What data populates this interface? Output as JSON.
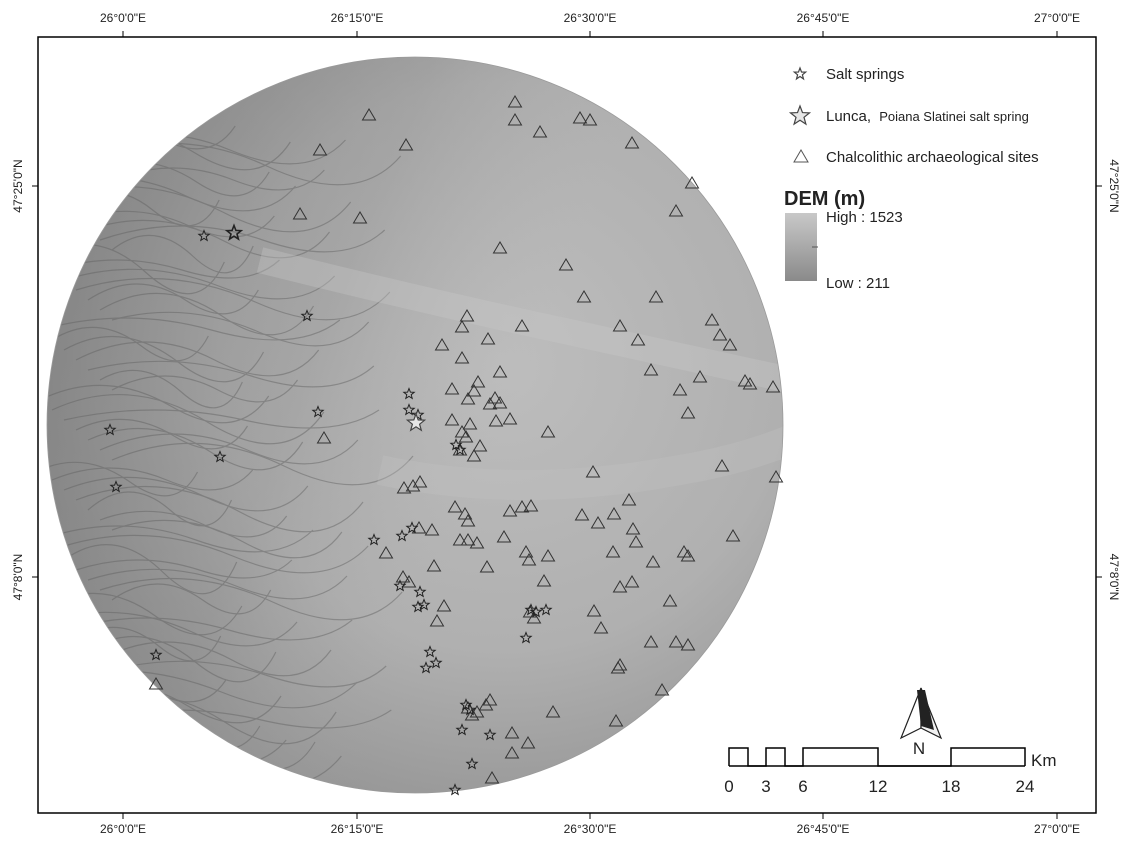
{
  "map": {
    "graticule": {
      "top_labels": [
        "26°0'0\"E",
        "26°15'0\"E",
        "26°30'0\"E",
        "26°45'0\"E",
        "27°0'0\"E"
      ],
      "bottom_labels": [
        "26°0'0\"E",
        "26°15'0\"E",
        "26°30'0\"E",
        "26°45'0\"E",
        "27°0'0\"E"
      ],
      "left_labels": [
        "47°25'0\"N",
        "47°8'0\"N"
      ],
      "right_labels": [
        "47°25'0\"N",
        "47°8'0\"N"
      ]
    },
    "legend": {
      "salt_springs": "Salt springs",
      "lunca_prefix": "Lunca,",
      "lunca_suffix": "Poiana Slatinei salt spring",
      "sites": "Chalcolithic archaeological sites",
      "dem_title": "DEM (m)",
      "dem_high": "High : 1523",
      "dem_low": "Low : 211"
    },
    "north_arrow_label": "N",
    "scale_bar": {
      "ticks": [
        "0",
        "3",
        "6",
        "12",
        "18",
        "24"
      ],
      "unit": "Km"
    },
    "colors": {
      "frame": "#000000",
      "dem_high": "#b9b9b9",
      "dem_low": "#8c8c8c",
      "symbol_stroke": "#333333"
    }
  }
}
